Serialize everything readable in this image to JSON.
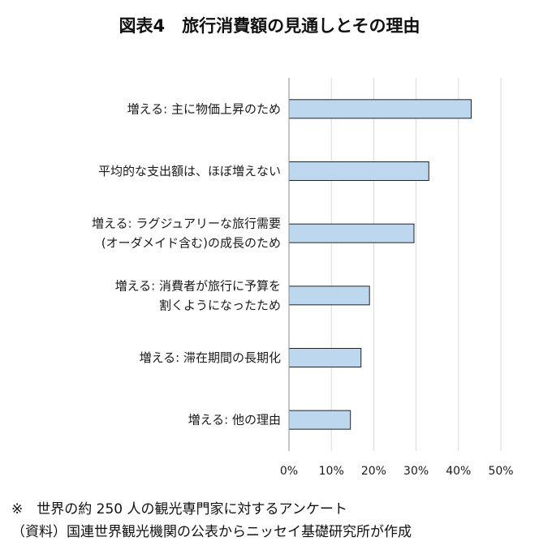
{
  "title": "図表4　旅行消費額の見通しとその理由",
  "chart_data": {
    "type": "bar",
    "orientation": "horizontal",
    "categories": [
      [
        "増える: 主に物価上昇のため"
      ],
      [
        "平均的な支出額は、ほぼ増えない"
      ],
      [
        "増える: ラグジュアリーな旅行需要",
        "(オーダメイド含む)の成長のため"
      ],
      [
        "増える: 消費者が旅行に予算を",
        "割くようになったため"
      ],
      [
        "増える: 滞在期間の長期化"
      ],
      [
        "増える: 他の理由"
      ]
    ],
    "values": [
      43,
      33,
      29.5,
      19,
      17,
      14.5
    ],
    "xlim": [
      0,
      50
    ],
    "ticks": [
      "0%",
      "10%",
      "20%",
      "30%",
      "40%",
      "50%"
    ],
    "grid": true,
    "bar_color": "#bdd7ee",
    "bar_edge_color": "#222222"
  },
  "notes": {
    "line1": "※　世界の約 250 人の観光専門家に対するアンケート",
    "line2": "（資料）国連世界観光機関の公表からニッセイ基礎研究所が作成"
  }
}
